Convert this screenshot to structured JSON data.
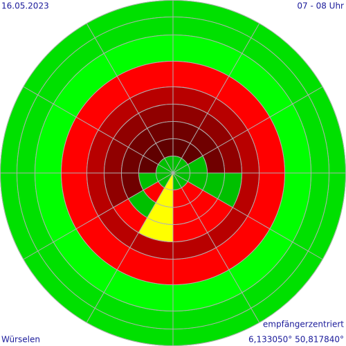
{
  "header": {
    "date": "16.05.2023",
    "time": "07 - 08 Uhr"
  },
  "footer": {
    "mode": "empfängerzentriert",
    "location": "Würselen",
    "coordinates": "6,133050° 50,817840°"
  }
}
